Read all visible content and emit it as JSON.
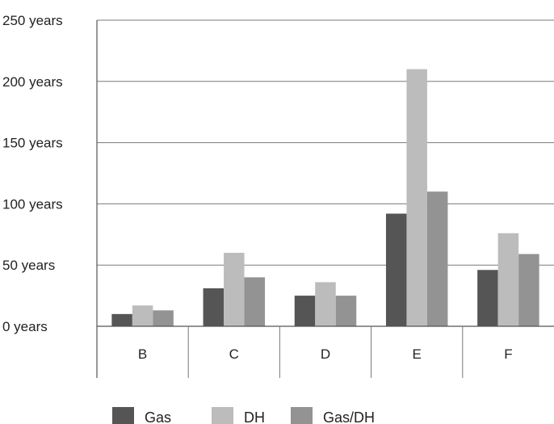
{
  "chart_data": {
    "type": "bar",
    "categories": [
      "B",
      "C",
      "D",
      "E",
      "F"
    ],
    "series": [
      {
        "name": "Gas",
        "values": [
          10,
          31,
          25,
          92,
          46
        ],
        "color": "#555555"
      },
      {
        "name": "DH",
        "values": [
          17,
          60,
          36,
          210,
          76
        ],
        "color": "#bcbcbc"
      },
      {
        "name": "Gas/DH",
        "values": [
          13,
          40,
          25,
          110,
          59
        ],
        "color": "#939393"
      }
    ],
    "y_ticks": [
      0,
      50,
      100,
      150,
      200,
      250
    ],
    "y_tick_labels": [
      "0 years",
      "50 years",
      "100 years",
      "150 years",
      "200 years",
      "250 years"
    ],
    "ylim": [
      0,
      250
    ],
    "grid": true,
    "legend_position": "bottom"
  }
}
